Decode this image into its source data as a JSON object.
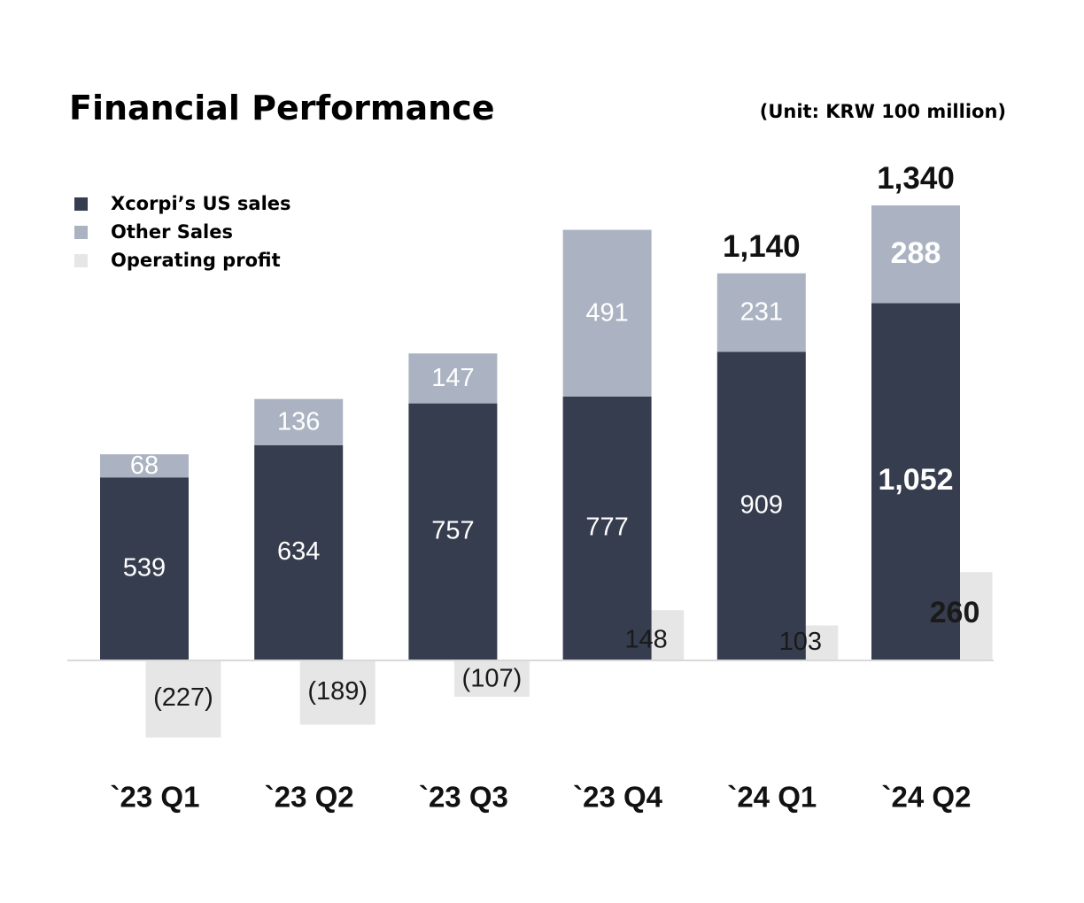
{
  "page": {
    "title": "Financial Performance",
    "unit": "(Unit: KRW 100 million)"
  },
  "legend": [
    {
      "label": "Xcorpi’s US sales",
      "color": "#363d4e"
    },
    {
      "label": "Other Sales",
      "color": "#abb3c2"
    },
    {
      "label": "Operating profit",
      "color": "#e6e6e6"
    }
  ],
  "chart_data": {
    "type": "bar",
    "title": "Financial Performance",
    "unit": "KRW 100 million",
    "categories": [
      "`23 Q1",
      "`23 Q2",
      "`23 Q3",
      "`23 Q4",
      "`24 Q1",
      "`24 Q2"
    ],
    "series": [
      {
        "name": "Xcorpi’s US sales",
        "stack": "sales",
        "color": "#363d4e",
        "values": [
          539,
          634,
          757,
          777,
          909,
          1052
        ],
        "labels": [
          "539",
          "634",
          "757",
          "777",
          "909",
          "1,052"
        ]
      },
      {
        "name": "Other Sales",
        "stack": "sales",
        "color": "#abb3c2",
        "values": [
          68,
          136,
          147,
          491,
          231,
          288
        ],
        "labels": [
          "68",
          "136",
          "147",
          "491",
          "231",
          "288"
        ]
      },
      {
        "name": "Operating profit",
        "color": "#e6e6e6",
        "values": [
          -227,
          -189,
          -107,
          148,
          103,
          260
        ],
        "labels": [
          "(227)",
          "(189)",
          "(107)",
          "148",
          "103",
          "260"
        ]
      }
    ],
    "totals": [
      {
        "index": 4,
        "label": "1,140"
      },
      {
        "index": 5,
        "label": "1,340"
      }
    ],
    "xlabel": "",
    "ylabel": "",
    "ylim": [
      -240,
      1400
    ]
  }
}
